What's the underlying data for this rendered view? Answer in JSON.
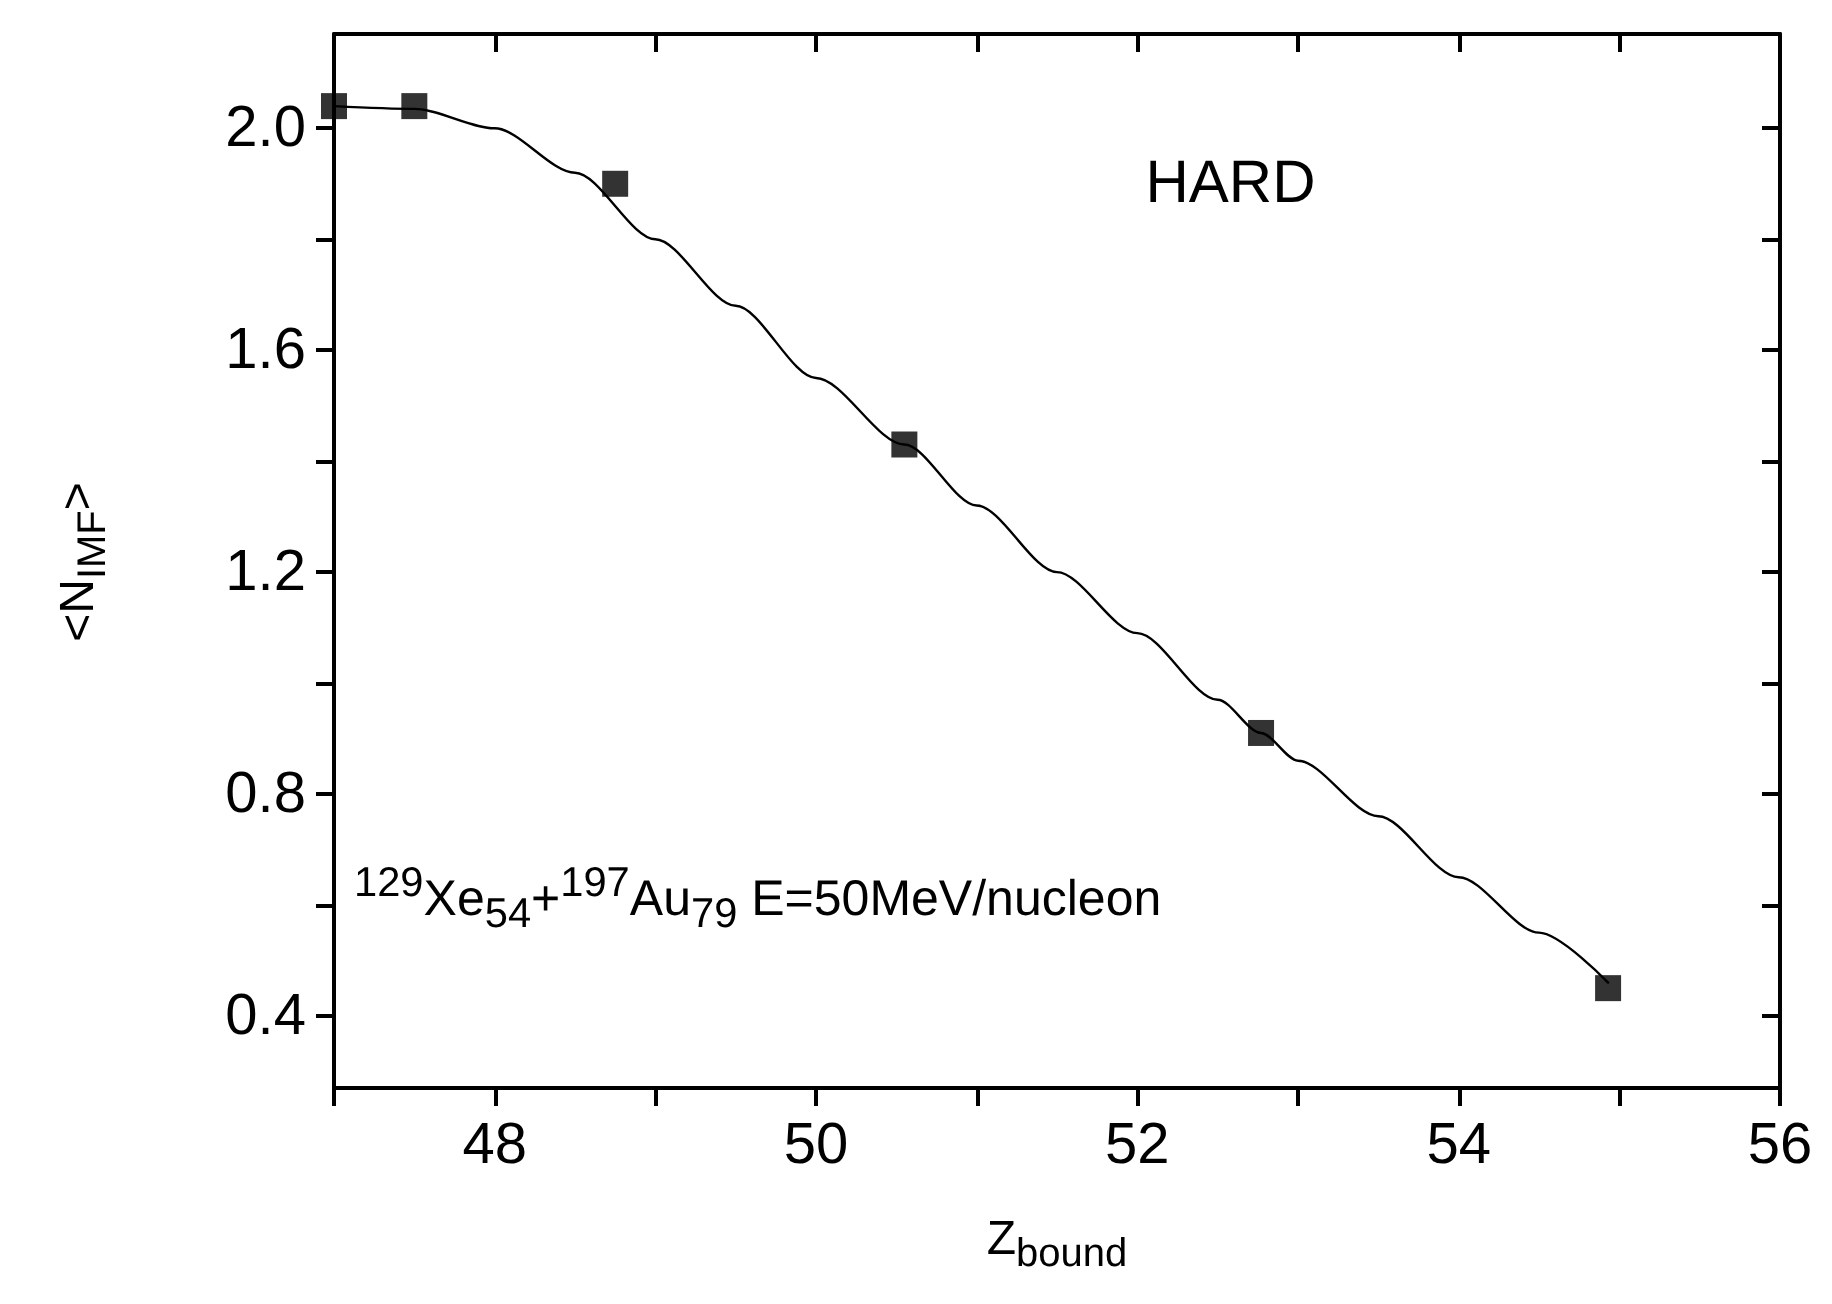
{
  "chart_data": {
    "type": "scatter",
    "xlabel": "Z$_{bound}$",
    "ylabel": "<N$_{IMF}$>",
    "annotations": [
      "HARD",
      "$^{129}$Xe$_{54}$+$^{197}$Au$_{79}$ E=50MeV/nucleon"
    ],
    "marker": "square",
    "grid": false,
    "xlim": [
      47,
      56
    ],
    "ylim": [
      0.27,
      2.17
    ],
    "xticks": [
      {
        "value": 47,
        "label": null
      },
      {
        "value": 48,
        "label": "48"
      },
      {
        "value": 49,
        "label": null
      },
      {
        "value": 50,
        "label": "50"
      },
      {
        "value": 51,
        "label": null
      },
      {
        "value": 52,
        "label": "52"
      },
      {
        "value": 53,
        "label": null
      },
      {
        "value": 54,
        "label": "54"
      },
      {
        "value": 55,
        "label": null
      },
      {
        "value": 56,
        "label": "56"
      }
    ],
    "yticks": [
      {
        "value": 0.4,
        "label": "0.4"
      },
      {
        "value": 0.6,
        "label": null
      },
      {
        "value": 0.8,
        "label": "0.8"
      },
      {
        "value": 1.0,
        "label": null
      },
      {
        "value": 1.2,
        "label": "1.2"
      },
      {
        "value": 1.4,
        "label": null
      },
      {
        "value": 1.6,
        "label": "1.6"
      },
      {
        "value": 1.8,
        "label": null
      },
      {
        "value": 2.0,
        "label": "2.0"
      }
    ],
    "series": [
      {
        "color": "#000000",
        "x": [
          47.0,
          47.5,
          48.75,
          50.55,
          52.77,
          54.93
        ],
        "values": [
          2.04,
          2.04,
          1.9,
          1.43,
          0.91,
          0.45
        ]
      },
      {
        "type": "line",
        "color": "#000000",
        "marker": "none",
        "line_style": "solid",
        "x": [
          47.0,
          47.5,
          48.0,
          48.5,
          49.0,
          49.5,
          50.0,
          50.55,
          51.0,
          51.5,
          52.0,
          52.5,
          52.77,
          53.0,
          53.5,
          54.0,
          54.5,
          54.93
        ],
        "values": [
          2.04,
          2.035,
          2.0,
          1.92,
          1.8,
          1.68,
          1.55,
          1.43,
          1.32,
          1.2,
          1.09,
          0.97,
          0.91,
          0.86,
          0.76,
          0.65,
          0.55,
          0.46
        ]
      }
    ]
  }
}
